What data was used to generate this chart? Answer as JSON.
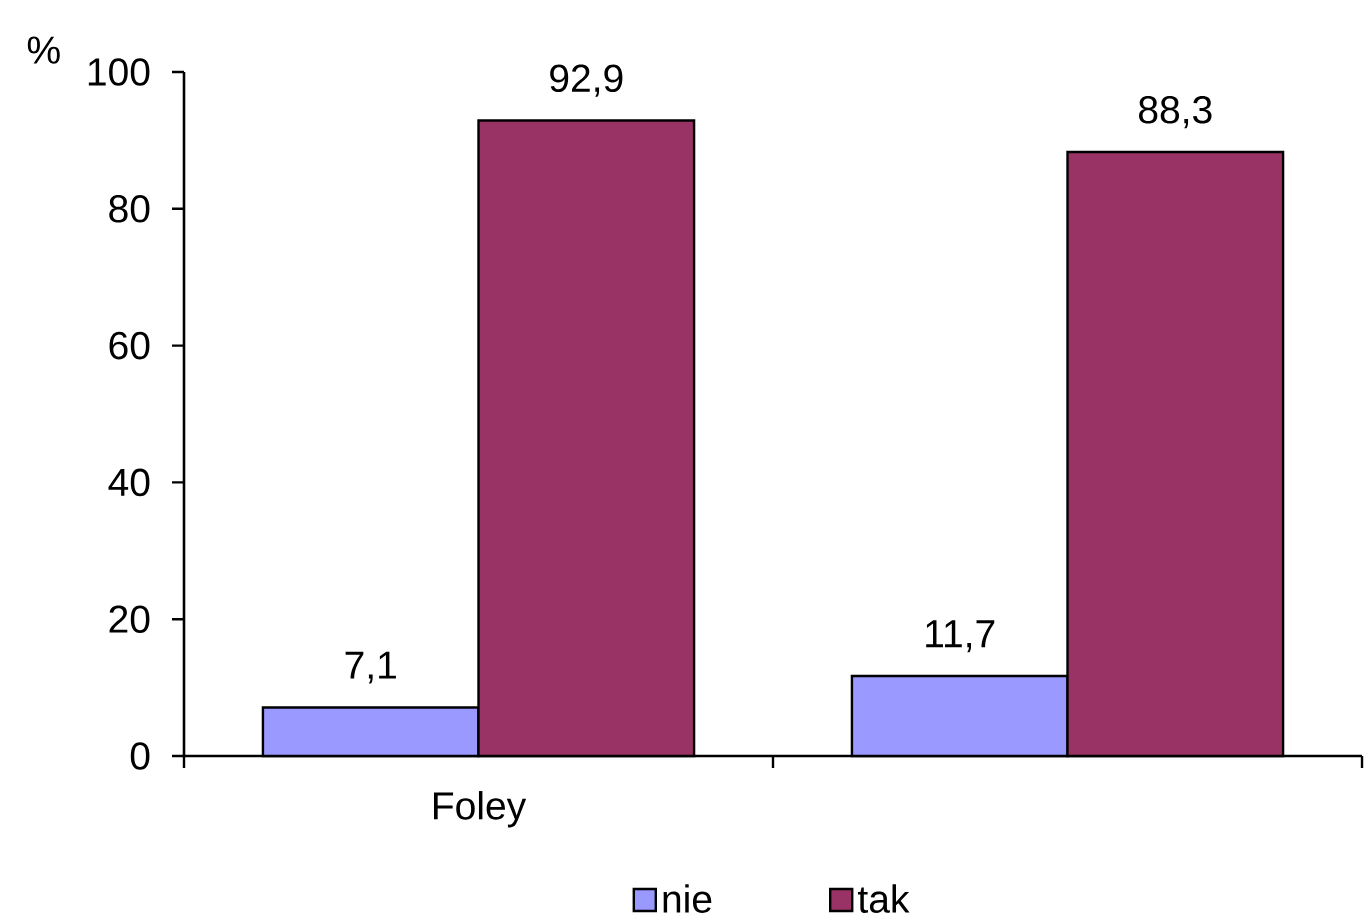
{
  "chart_data": {
    "type": "bar",
    "ylabel": "%",
    "categories": [
      "Foley",
      null
    ],
    "series": [
      {
        "name": "nie",
        "color": "#9999ff",
        "values": [
          7.1,
          11.7
        ],
        "value_labels": [
          "7,1",
          "11,7"
        ]
      },
      {
        "name": "tak",
        "color": "#993366",
        "values": [
          92.9,
          88.3
        ],
        "value_labels": [
          "92,9",
          "88,3"
        ]
      }
    ],
    "ylim": [
      0,
      100
    ],
    "yticks": [
      0,
      20,
      40,
      60,
      80,
      100
    ],
    "legend": "bottom"
  }
}
